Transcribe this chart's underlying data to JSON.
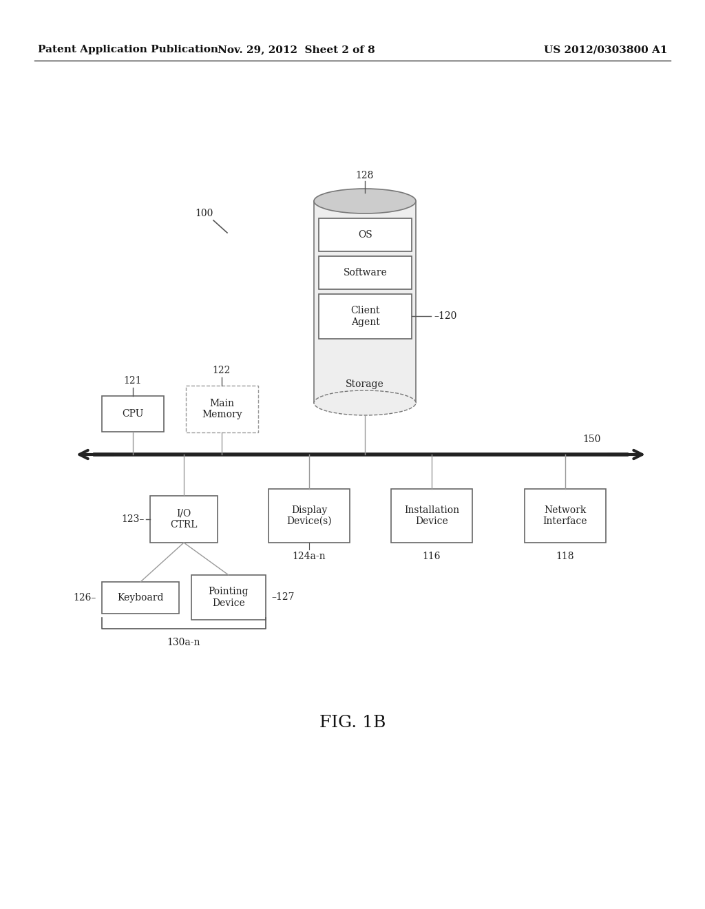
{
  "bg_color": "#ffffff",
  "header_left": "Patent Application Publication",
  "header_mid": "Nov. 29, 2012  Sheet 2 of 8",
  "header_right": "US 2012/0303800 A1",
  "figure_label": "FIG. 1B",
  "label_100": "100",
  "label_128": "128",
  "label_120": "120",
  "label_121": "121",
  "label_122": "122",
  "label_123": "123",
  "label_124": "124a-n",
  "label_126": "126",
  "label_127": "127",
  "label_130": "130a-n",
  "label_116": "116",
  "label_118": "118",
  "label_150": "150",
  "box_cpu": "CPU",
  "box_main_memory": "Main\nMemory",
  "box_client_agent": "Client\nAgent",
  "box_os": "OS",
  "box_software": "Software",
  "box_storage": "Storage",
  "box_io_ctrl": "I/O\nCTRL",
  "box_display": "Display\nDevice(s)",
  "box_installation": "Installation\nDevice",
  "box_network": "Network\nInterface",
  "box_keyboard": "Keyboard",
  "box_pointing": "Pointing\nDevice",
  "line_color": "#555555",
  "box_edge_color": "#666666",
  "text_color": "#222222",
  "header_text_color": "#111111"
}
